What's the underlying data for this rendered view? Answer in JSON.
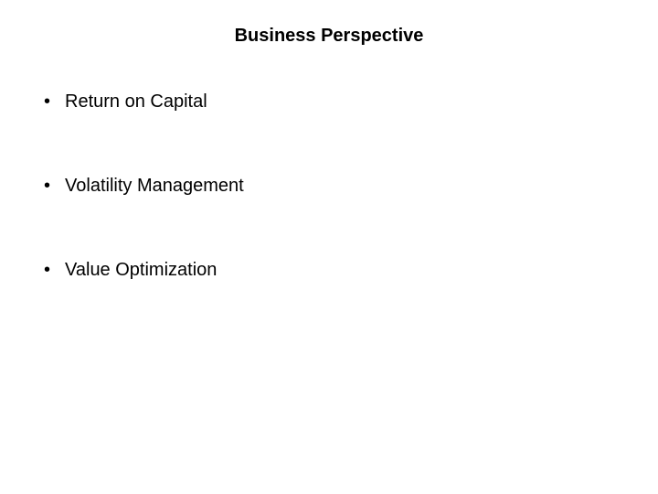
{
  "slide": {
    "title": "Business Perspective",
    "bullets": [
      "Return on Capital",
      "Volatility Management",
      "Value Optimization"
    ],
    "bullet_symbol": "•"
  },
  "style": {
    "background_color": "#ffffff",
    "text_color": "#000000",
    "title_fontsize": 20,
    "title_fontweight": "bold",
    "bullet_fontsize": 20,
    "bullet_spacing": 68,
    "font_family": "Arial"
  }
}
